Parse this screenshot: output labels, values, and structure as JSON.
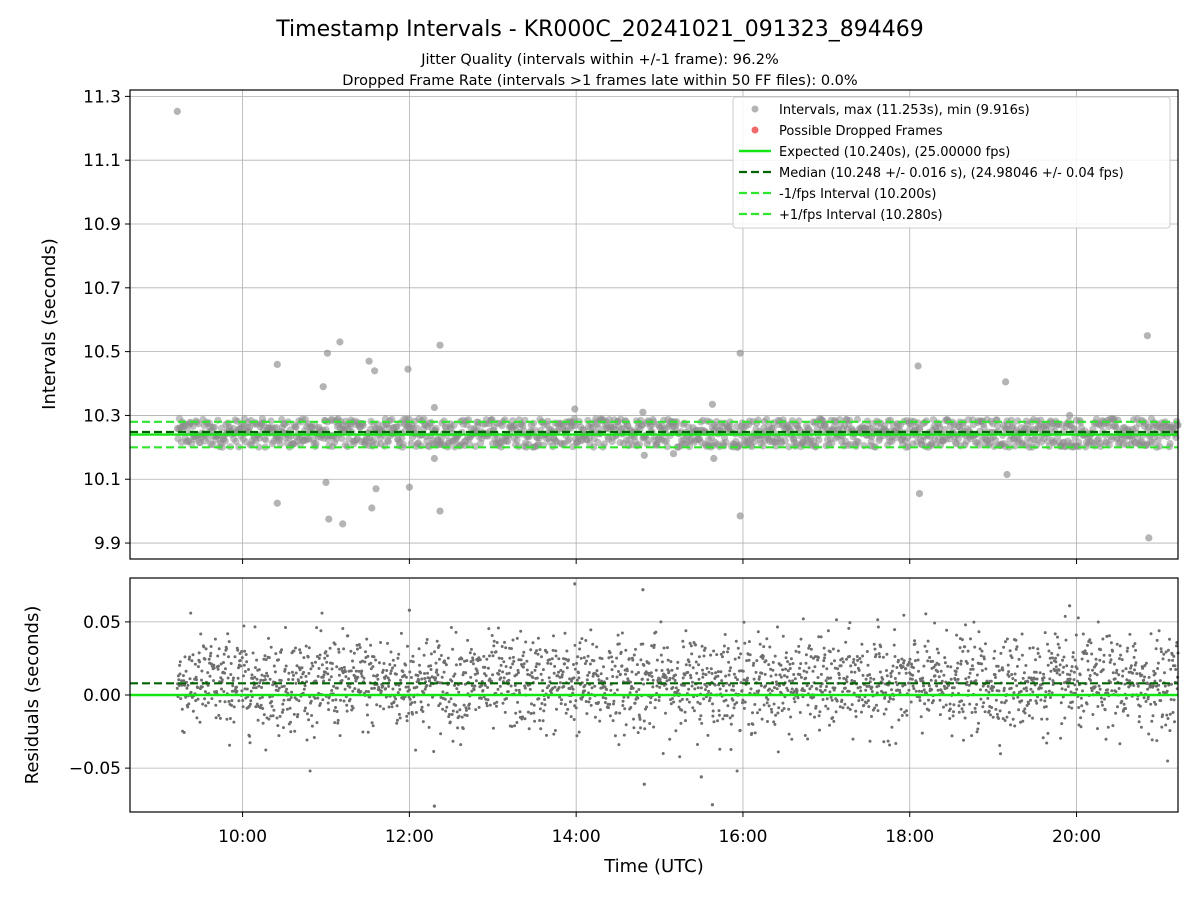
{
  "figure": {
    "title": "Timestamp Intervals - KR000C_20241021_091323_894469",
    "subtitle_1": "Jitter Quality (intervals within +/-1 frame): 96.2%",
    "subtitle_2": "Dropped Frame Rate (intervals >1 frames late within 50 FF files): 0.0%"
  },
  "colors": {
    "scatter": "#8c8c8c",
    "residual_points": "#6e6e6e",
    "dropped": "#ef5b5b",
    "expected": "#13e613",
    "median": "#006400",
    "fps_band": "#2ee62e",
    "grid": "#b0b0b0"
  },
  "chart_data": [
    {
      "type": "scatter",
      "title": "",
      "xlabel": "",
      "ylabel": "Intervals (seconds)",
      "xlim": [
        "08:39",
        "21:13"
      ],
      "ylim": [
        9.85,
        11.32
      ],
      "yticks": [
        9.9,
        10.1,
        10.3,
        10.5,
        10.7,
        10.9,
        11.1,
        11.3
      ],
      "ytick_labels": [
        "9.9",
        "10.1",
        "10.3",
        "10.5",
        "10.7",
        "10.9",
        "11.1",
        "11.3"
      ],
      "grid": true,
      "legend_position": "top-right",
      "legend": [
        "Intervals, max (11.253s), min (9.916s)",
        "Possible Dropped Frames",
        "Expected (10.240s), (25.00000 fps)",
        "Median (10.248 +/- 0.016 s), (24.98046 +/- 0.04 fps)",
        "-1/fps Interval (10.200s)",
        "+1/fps Interval (10.280s)"
      ],
      "data_time_range": [
        "09:13",
        "21:13"
      ],
      "typical_band": [
        10.2,
        10.29
      ],
      "reference_lines": {
        "expected": 10.24,
        "median": 10.248,
        "minus_1_fps": 10.2,
        "plus_1_fps": 10.28
      },
      "series": [
        {
          "name": "Intervals, max (11.253s), min (9.916s)",
          "outliers": [
            {
              "x": "09:13",
              "y": 11.253
            },
            {
              "x": "10:25",
              "y": 10.46
            },
            {
              "x": "10:25",
              "y": 10.025
            },
            {
              "x": "10:58",
              "y": 10.39
            },
            {
              "x": "11:00",
              "y": 10.09
            },
            {
              "x": "11:01",
              "y": 10.495
            },
            {
              "x": "11:02",
              "y": 9.975
            },
            {
              "x": "11:10",
              "y": 10.53
            },
            {
              "x": "11:12",
              "y": 9.96
            },
            {
              "x": "11:31",
              "y": 10.47
            },
            {
              "x": "11:33",
              "y": 10.01
            },
            {
              "x": "11:35",
              "y": 10.44
            },
            {
              "x": "11:36",
              "y": 10.07
            },
            {
              "x": "11:59",
              "y": 10.445
            },
            {
              "x": "12:00",
              "y": 10.075
            },
            {
              "x": "12:18",
              "y": 10.325
            },
            {
              "x": "12:18",
              "y": 10.165
            },
            {
              "x": "12:22",
              "y": 10.52
            },
            {
              "x": "12:22",
              "y": 10.0
            },
            {
              "x": "13:59",
              "y": 10.32
            },
            {
              "x": "14:48",
              "y": 10.31
            },
            {
              "x": "14:49",
              "y": 10.175
            },
            {
              "x": "15:10",
              "y": 10.18
            },
            {
              "x": "15:38",
              "y": 10.335
            },
            {
              "x": "15:39",
              "y": 10.165
            },
            {
              "x": "15:58",
              "y": 10.495
            },
            {
              "x": "15:58",
              "y": 9.985
            },
            {
              "x": "18:06",
              "y": 10.455
            },
            {
              "x": "18:07",
              "y": 10.055
            },
            {
              "x": "19:09",
              "y": 10.405
            },
            {
              "x": "19:10",
              "y": 10.115
            },
            {
              "x": "19:55",
              "y": 10.3
            },
            {
              "x": "20:51",
              "y": 10.55
            },
            {
              "x": "20:52",
              "y": 9.916
            }
          ]
        },
        {
          "name": "Possible Dropped Frames",
          "points": []
        }
      ]
    },
    {
      "type": "scatter",
      "title": "",
      "xlabel": "Time (UTC)",
      "ylabel": "Residuals (seconds)",
      "xlim": [
        "08:39",
        "21:13"
      ],
      "ylim": [
        -0.08,
        0.08
      ],
      "xticks": [
        "10:00",
        "12:00",
        "14:00",
        "16:00",
        "18:00",
        "20:00"
      ],
      "yticks": [
        -0.05,
        0.0,
        0.05
      ],
      "ytick_labels": [
        "−0.05",
        "0.00",
        "0.05"
      ],
      "grid": true,
      "reference_lines": {
        "zero": 0.0,
        "median_offset": 0.008
      },
      "residual_spread": {
        "center": 0.008,
        "std": 0.016
      },
      "series": [
        {
          "name": "residuals",
          "outliers": [
            {
              "x": "13:59",
              "y": 0.076
            },
            {
              "x": "14:48",
              "y": 0.072
            },
            {
              "x": "12:18",
              "y": -0.076
            },
            {
              "x": "15:38",
              "y": -0.075
            },
            {
              "x": "15:30",
              "y": -0.056
            },
            {
              "x": "14:49",
              "y": -0.061
            },
            {
              "x": "19:55",
              "y": 0.061
            },
            {
              "x": "12:00",
              "y": 0.058
            }
          ]
        }
      ]
    }
  ]
}
